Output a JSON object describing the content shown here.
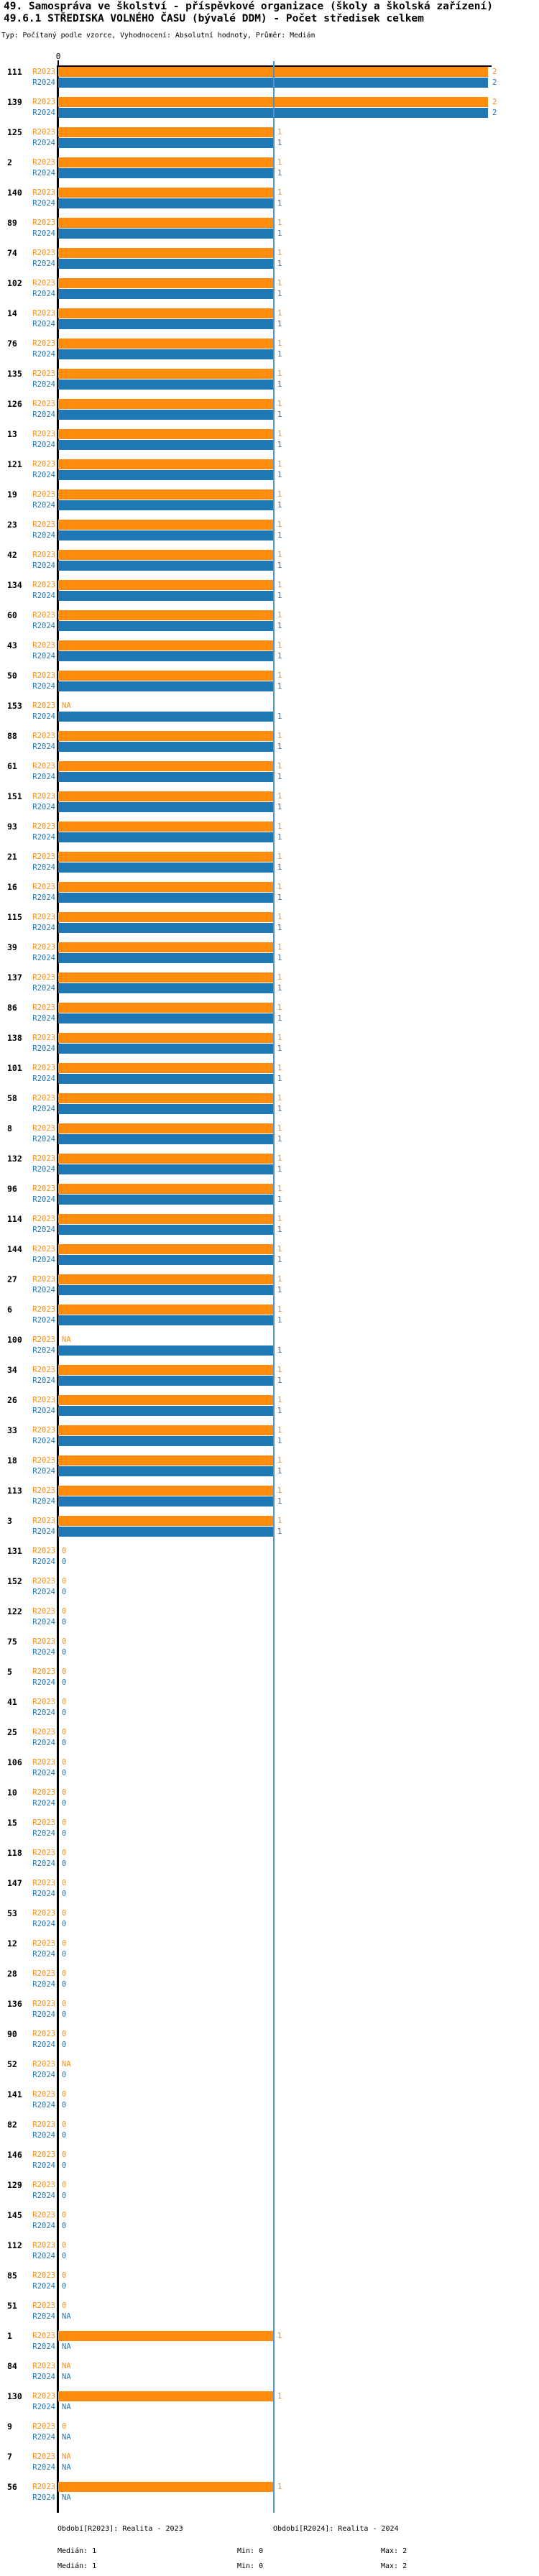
{
  "header": {
    "title_line1": "49. Samospráva ve školství - příspěvkové organizace (školy a školská zařízení)",
    "title_line2": "49.6.1 STŘEDISKA VOLNÉHO ČASU (bývalé DDM) - Počet středisek celkem",
    "subtitle": "Typ: Počítaný podle vzorce, Vyhodnocení: Absolutní hodnoty, Průměr: Medián"
  },
  "chart_data": {
    "type": "bar",
    "orientation": "horizontal",
    "title": "49.6.1 STŘEDISKA VOLNÉHO ČASU (bývalé DDM) - Počet středisek celkem",
    "x_tick_labels": [
      "0"
    ],
    "xlim": [
      0,
      2.02
    ],
    "na_text": "NA",
    "grid": false,
    "legend_position": "bottom",
    "colors": {
      "R2023": "#ff8c0d",
      "R2024": "#1f77b4",
      "median_line": "#4d94c7",
      "axis": "#000000"
    },
    "median": {
      "R2023": 1,
      "R2024": 1
    },
    "categories": [
      "111",
      "139",
      "125",
      "2",
      "140",
      "89",
      "74",
      "102",
      "14",
      "76",
      "135",
      "126",
      "13",
      "121",
      "19",
      "23",
      "42",
      "134",
      "60",
      "43",
      "50",
      "153",
      "88",
      "61",
      "151",
      "93",
      "21",
      "16",
      "115",
      "39",
      "137",
      "86",
      "138",
      "101",
      "58",
      "8",
      "132",
      "96",
      "114",
      "144",
      "27",
      "6",
      "100",
      "34",
      "26",
      "33",
      "18",
      "113",
      "3",
      "131",
      "152",
      "122",
      "75",
      "5",
      "41",
      "25",
      "106",
      "10",
      "15",
      "118",
      "147",
      "53",
      "12",
      "28",
      "136",
      "90",
      "52",
      "141",
      "82",
      "146",
      "129",
      "145",
      "112",
      "85",
      "51",
      "1",
      "84",
      "130",
      "9",
      "7",
      "56"
    ],
    "series": [
      {
        "name": "R2023",
        "values": [
          2,
          2,
          1,
          1,
          1,
          1,
          1,
          1,
          1,
          1,
          1,
          1,
          1,
          1,
          1,
          1,
          1,
          1,
          1,
          1,
          1,
          "NA",
          1,
          1,
          1,
          1,
          1,
          1,
          1,
          1,
          1,
          1,
          1,
          1,
          1,
          1,
          1,
          1,
          1,
          1,
          1,
          1,
          "NA",
          1,
          1,
          1,
          1,
          1,
          1,
          0,
          0,
          0,
          0,
          0,
          0,
          0,
          0,
          0,
          0,
          0,
          0,
          0,
          0,
          0,
          0,
          0,
          "NA",
          0,
          0,
          0,
          0,
          0,
          0,
          0,
          0,
          1,
          "NA",
          1,
          0,
          "NA",
          1
        ]
      },
      {
        "name": "R2024",
        "values": [
          2,
          2,
          1,
          1,
          1,
          1,
          1,
          1,
          1,
          1,
          1,
          1,
          1,
          1,
          1,
          1,
          1,
          1,
          1,
          1,
          1,
          1,
          1,
          1,
          1,
          1,
          1,
          1,
          1,
          1,
          1,
          1,
          1,
          1,
          1,
          1,
          1,
          1,
          1,
          1,
          1,
          1,
          1,
          1,
          1,
          1,
          1,
          1,
          1,
          0,
          0,
          0,
          0,
          0,
          0,
          0,
          0,
          0,
          0,
          0,
          0,
          0,
          0,
          0,
          0,
          0,
          0,
          0,
          0,
          0,
          0,
          0,
          0,
          0,
          "NA",
          "NA",
          "NA",
          "NA",
          "NA",
          "NA",
          "NA"
        ]
      }
    ]
  },
  "footer": {
    "legend_r2023": "Období[R2023]: Realita - 2023",
    "legend_r2024": "Období[R2024]: Realita - 2024",
    "stats_r2023": {
      "median": "Medián: 1",
      "min": "Min: 0",
      "max": "Max: 2"
    },
    "stats_r2024": {
      "median": "Medián: 1",
      "min": "Min: 0",
      "max": "Max: 2"
    }
  }
}
